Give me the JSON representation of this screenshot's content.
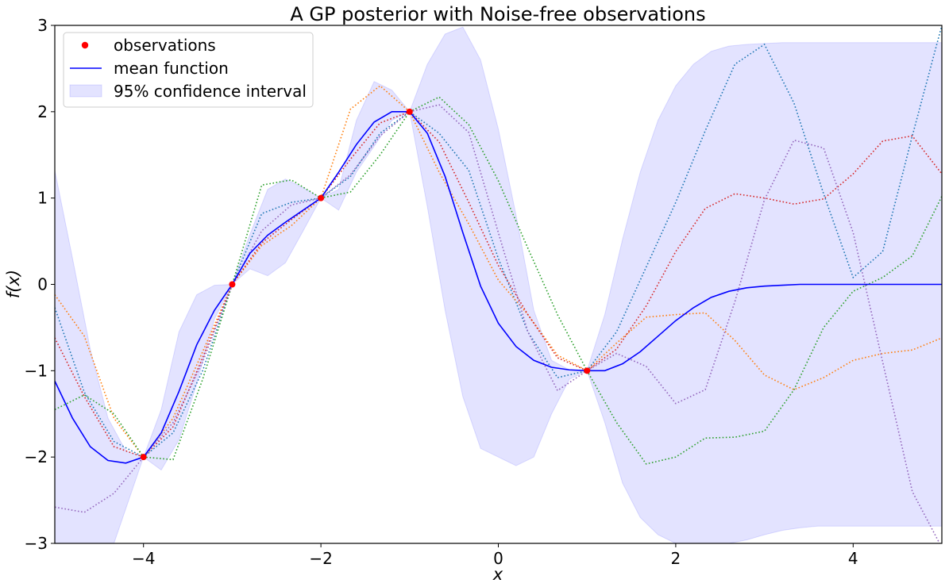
{
  "chart_data": {
    "type": "line",
    "title": "A GP posterior with Noise-free observations",
    "xlabel": "x",
    "ylabel": "f(x)",
    "xlim": [
      -5,
      5
    ],
    "ylim": [
      -3,
      3
    ],
    "xticks": [
      -4,
      -2,
      0,
      2,
      4
    ],
    "yticks": [
      -3,
      -2,
      -1,
      0,
      1,
      2,
      3
    ],
    "grid": false,
    "legend_position": "top-left",
    "legend": [
      "observations",
      "mean function",
      "95% confidence interval"
    ],
    "observations": {
      "name": "observations",
      "color": "#ff0000",
      "x": [
        -4,
        -3,
        -2,
        -1,
        1
      ],
      "y": [
        -2,
        0,
        1,
        2,
        -1
      ]
    },
    "mean": {
      "name": "mean function",
      "color": "#0000ff",
      "x": [
        -5,
        -4.8,
        -4.6,
        -4.4,
        -4.2,
        -4,
        -3.8,
        -3.6,
        -3.4,
        -3.2,
        -3,
        -2.8,
        -2.6,
        -2.4,
        -2.2,
        -2,
        -1.8,
        -1.6,
        -1.4,
        -1.2,
        -1,
        -0.8,
        -0.6,
        -0.4,
        -0.2,
        0,
        0.2,
        0.4,
        0.6,
        0.8,
        1,
        1.2,
        1.4,
        1.6,
        1.8,
        2,
        2.2,
        2.4,
        2.6,
        2.8,
        3,
        3.2,
        3.4,
        3.6,
        3.8,
        4,
        4.2,
        4.4,
        4.6,
        4.8,
        5
      ],
      "y": [
        -1.12,
        -1.55,
        -1.88,
        -2.04,
        -2.07,
        -2.0,
        -1.72,
        -1.24,
        -0.7,
        -0.3,
        0.0,
        0.36,
        0.57,
        0.72,
        0.86,
        1.0,
        1.3,
        1.62,
        1.88,
        2.0,
        2.0,
        1.75,
        1.25,
        0.6,
        -0.02,
        -0.45,
        -0.72,
        -0.88,
        -0.96,
        -0.99,
        -1.0,
        -1.0,
        -0.92,
        -0.78,
        -0.6,
        -0.42,
        -0.27,
        -0.15,
        -0.08,
        -0.04,
        -0.02,
        -0.01,
        0.0,
        0.0,
        0.0,
        0.0,
        0.0,
        0.0,
        0.0,
        0.0,
        0.0
      ]
    },
    "confidence_interval": {
      "name": "95% confidence interval",
      "color": "#0000ff",
      "opacity": 0.11,
      "x": [
        -5,
        -4.8,
        -4.6,
        -4.4,
        -4.2,
        -4,
        -3.8,
        -3.6,
        -3.4,
        -3.2,
        -3,
        -2.8,
        -2.6,
        -2.4,
        -2.2,
        -2,
        -1.8,
        -1.6,
        -1.4,
        -1.2,
        -1,
        -0.8,
        -0.6,
        -0.4,
        -0.2,
        0,
        0.2,
        0.4,
        0.6,
        0.8,
        1,
        1.2,
        1.4,
        1.6,
        1.8,
        2,
        2.2,
        2.4,
        2.6,
        2.8,
        3,
        3.2,
        3.4,
        3.6,
        3.8,
        4,
        4.2,
        4.4,
        4.6,
        4.8,
        5
      ],
      "upper": [
        1.32,
        0.3,
        -0.75,
        -1.55,
        -1.93,
        -2.0,
        -1.45,
        -0.55,
        -0.12,
        -0.01,
        0.0,
        0.58,
        1.1,
        1.22,
        1.12,
        1.0,
        1.1,
        1.9,
        2.35,
        2.25,
        2.0,
        2.55,
        2.9,
        2.98,
        2.6,
        1.8,
        0.8,
        -0.3,
        -0.88,
        -0.99,
        -1.0,
        -0.35,
        0.52,
        1.3,
        1.9,
        2.3,
        2.55,
        2.7,
        2.76,
        2.78,
        2.79,
        2.8,
        2.8,
        2.8,
        2.8,
        2.8,
        2.8,
        2.8,
        2.8,
        2.8,
        2.8
      ],
      "lower": [
        -3.5,
        -3.5,
        -3.5,
        -3.2,
        -2.6,
        -2.0,
        -2.15,
        -1.8,
        -1.15,
        -0.4,
        0.0,
        0.18,
        0.1,
        0.25,
        0.62,
        1.0,
        0.86,
        1.3,
        1.6,
        1.9,
        2.0,
        0.9,
        -0.3,
        -1.3,
        -1.9,
        -2.0,
        -2.1,
        -2.0,
        -1.5,
        -1.1,
        -1.0,
        -1.6,
        -2.3,
        -2.7,
        -2.9,
        -3.0,
        -3.0,
        -3.0,
        -3.0,
        -2.96,
        -2.9,
        -2.85,
        -2.82,
        -2.8,
        -2.8,
        -2.8,
        -2.8,
        -2.8,
        -2.8,
        -2.8,
        -2.8
      ]
    },
    "samples": [
      {
        "color": "#1f77b4",
        "x": [
          -5,
          -4.667,
          -4.333,
          -4,
          -3.667,
          -3.333,
          -3,
          -2.667,
          -2.333,
          -2,
          -1.667,
          -1.333,
          -1,
          -0.667,
          -0.333,
          0,
          0.333,
          0.667,
          1,
          1.333,
          1.667,
          2,
          2.333,
          2.667,
          3,
          3.333,
          3.667,
          4,
          4.333,
          4.667,
          5
        ],
        "y": [
          -0.27,
          -1.25,
          -1.82,
          -2.0,
          -1.72,
          -1.0,
          0.0,
          0.82,
          0.95,
          1.0,
          1.25,
          1.75,
          2.0,
          1.75,
          1.32,
          0.3,
          -0.55,
          -1.08,
          -1.0,
          -0.55,
          0.2,
          0.95,
          1.78,
          2.55,
          2.78,
          2.1,
          1.05,
          0.08,
          0.38,
          1.72,
          3.0
        ]
      },
      {
        "color": "#ff7f0e",
        "x": [
          -5,
          -4.667,
          -4.333,
          -4,
          -3.667,
          -3.333,
          -3,
          -2.667,
          -2.333,
          -2,
          -1.667,
          -1.333,
          -1,
          -0.667,
          -0.333,
          0,
          0.333,
          0.667,
          1,
          1.333,
          1.667,
          2,
          2.333,
          2.667,
          3,
          3.333,
          3.667,
          4,
          4.333,
          4.667,
          5
        ],
        "y": [
          -0.12,
          -0.6,
          -1.55,
          -2.0,
          -1.55,
          -0.78,
          0.0,
          0.45,
          0.68,
          1.0,
          2.03,
          2.3,
          2.0,
          1.3,
          0.7,
          0.05,
          -0.35,
          -0.82,
          -1.0,
          -0.68,
          -0.38,
          -0.35,
          -0.33,
          -0.65,
          -1.05,
          -1.22,
          -1.08,
          -0.88,
          -0.8,
          -0.76,
          -0.62
        ]
      },
      {
        "color": "#2ca02c",
        "x": [
          -5,
          -4.667,
          -4.333,
          -4,
          -3.667,
          -3.333,
          -3,
          -2.667,
          -2.333,
          -2,
          -1.667,
          -1.333,
          -1,
          -0.667,
          -0.333,
          0,
          0.333,
          0.667,
          1,
          1.333,
          1.667,
          2,
          2.333,
          2.667,
          3,
          3.333,
          3.667,
          4,
          4.333,
          4.667,
          5
        ],
        "y": [
          -1.45,
          -1.28,
          -1.5,
          -2.0,
          -2.03,
          -1.1,
          0.0,
          1.15,
          1.21,
          1.0,
          1.07,
          1.5,
          2.0,
          2.17,
          1.85,
          1.2,
          0.42,
          -0.35,
          -1.0,
          -1.6,
          -2.08,
          -2.0,
          -1.78,
          -1.77,
          -1.7,
          -1.22,
          -0.5,
          -0.08,
          0.08,
          0.33,
          1.02
        ]
      },
      {
        "color": "#d62728",
        "x": [
          -5,
          -4.667,
          -4.333,
          -4,
          -3.667,
          -3.333,
          -3,
          -2.667,
          -2.333,
          -2,
          -1.667,
          -1.333,
          -1,
          -0.667,
          -0.333,
          0,
          0.333,
          0.667,
          1,
          1.333,
          1.667,
          2,
          2.333,
          2.667,
          3,
          3.333,
          3.667,
          4,
          4.333,
          4.667,
          5
        ],
        "y": [
          -0.62,
          -1.3,
          -1.88,
          -2.0,
          -1.65,
          -0.85,
          0.0,
          0.48,
          0.75,
          1.0,
          1.45,
          1.87,
          2.0,
          1.65,
          0.95,
          0.22,
          -0.35,
          -0.85,
          -1.0,
          -0.75,
          -0.25,
          0.38,
          0.88,
          1.05,
          1.0,
          0.93,
          0.99,
          1.28,
          1.66,
          1.72,
          1.28
        ]
      },
      {
        "color": "#9467bd",
        "x": [
          -5,
          -4.667,
          -4.333,
          -4,
          -3.667,
          -3.333,
          -3,
          -2.667,
          -2.333,
          -2,
          -1.667,
          -1.333,
          -1,
          -0.667,
          -0.333,
          0,
          0.333,
          0.667,
          1,
          1.333,
          1.667,
          2,
          2.333,
          2.667,
          3,
          3.333,
          3.667,
          4,
          4.333,
          4.667,
          5
        ],
        "y": [
          -2.58,
          -2.64,
          -2.42,
          -2.0,
          -1.6,
          -0.9,
          0.0,
          0.62,
          0.92,
          1.0,
          1.27,
          1.72,
          2.0,
          2.08,
          1.76,
          0.6,
          -0.55,
          -1.23,
          -1.0,
          -0.8,
          -0.95,
          -1.38,
          -1.22,
          -0.2,
          0.98,
          1.67,
          1.58,
          0.6,
          -0.9,
          -2.4,
          -3.05
        ]
      }
    ]
  }
}
